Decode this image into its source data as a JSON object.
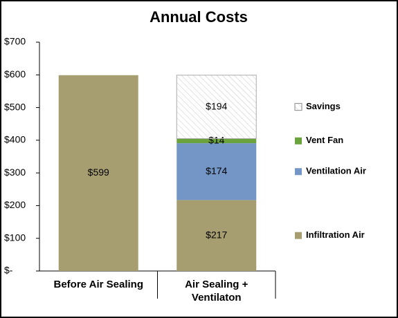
{
  "chart_data": {
    "type": "stacked-bar",
    "title": "Annual Costs",
    "categories": [
      "Before Air Sealing",
      "Air Sealing + Ventilaton"
    ],
    "series": [
      {
        "name": "Infiltration Air",
        "color": "#a69e70",
        "values": [
          599,
          217
        ],
        "value_labels": [
          "$599",
          "$217"
        ]
      },
      {
        "name": "Ventilation Air",
        "color": "#7396c6",
        "values": [
          null,
          174
        ],
        "value_labels": [
          null,
          "$174"
        ]
      },
      {
        "name": "Vent Fan",
        "color": "#6aa23c",
        "values": [
          null,
          14
        ],
        "value_labels": [
          null,
          "$14"
        ]
      },
      {
        "name": "Savings",
        "color": "#ffffff",
        "pattern": "hatch",
        "values": [
          null,
          194
        ],
        "value_labels": [
          null,
          "$194"
        ]
      }
    ],
    "ylim": [
      0,
      700
    ],
    "yticks": [
      {
        "value": 0,
        "label": "$-"
      },
      {
        "value": 100,
        "label": "$100"
      },
      {
        "value": 200,
        "label": "$200"
      },
      {
        "value": 300,
        "label": "$300"
      },
      {
        "value": 400,
        "label": "$400"
      },
      {
        "value": 500,
        "label": "$500"
      },
      {
        "value": 600,
        "label": "$600"
      },
      {
        "value": 700,
        "label": "$700"
      }
    ],
    "legend": "right"
  }
}
